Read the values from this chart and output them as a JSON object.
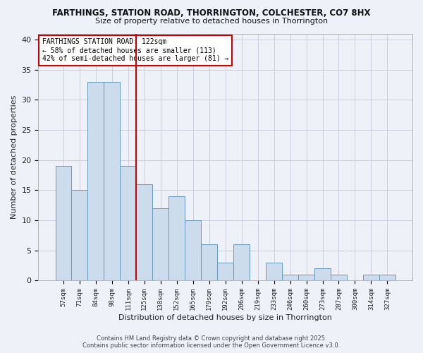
{
  "title1": "FARTHINGS, STATION ROAD, THORRINGTON, COLCHESTER, CO7 8HX",
  "title2": "Size of property relative to detached houses in Thorrington",
  "xlabel": "Distribution of detached houses by size in Thorrington",
  "ylabel": "Number of detached properties",
  "categories": [
    "57sqm",
    "71sqm",
    "84sqm",
    "98sqm",
    "111sqm",
    "125sqm",
    "138sqm",
    "152sqm",
    "165sqm",
    "179sqm",
    "192sqm",
    "206sqm",
    "219sqm",
    "233sqm",
    "246sqm",
    "260sqm",
    "273sqm",
    "287sqm",
    "300sqm",
    "314sqm",
    "327sqm"
  ],
  "values": [
    19,
    15,
    33,
    33,
    19,
    16,
    12,
    14,
    10,
    6,
    3,
    6,
    0,
    3,
    1,
    1,
    2,
    1,
    0,
    1,
    1
  ],
  "bar_color": "#ccdcec",
  "bar_edge_color": "#6699bb",
  "grid_color": "#ccccdd",
  "background_color": "#eef2f8",
  "vline_color": "#cc0000",
  "annotation_title": "FARTHINGS STATION ROAD: 122sqm",
  "annotation_line1": "← 58% of detached houses are smaller (113)",
  "annotation_line2": "42% of semi-detached houses are larger (81) →",
  "annotation_box_color": "#ffffff",
  "annotation_box_edge": "#cc0000",
  "footer1": "Contains HM Land Registry data © Crown copyright and database right 2025.",
  "footer2": "Contains public sector information licensed under the Open Government Licence v3.0.",
  "ylim": [
    0,
    41
  ],
  "yticks": [
    0,
    5,
    10,
    15,
    20,
    25,
    30,
    35,
    40
  ]
}
